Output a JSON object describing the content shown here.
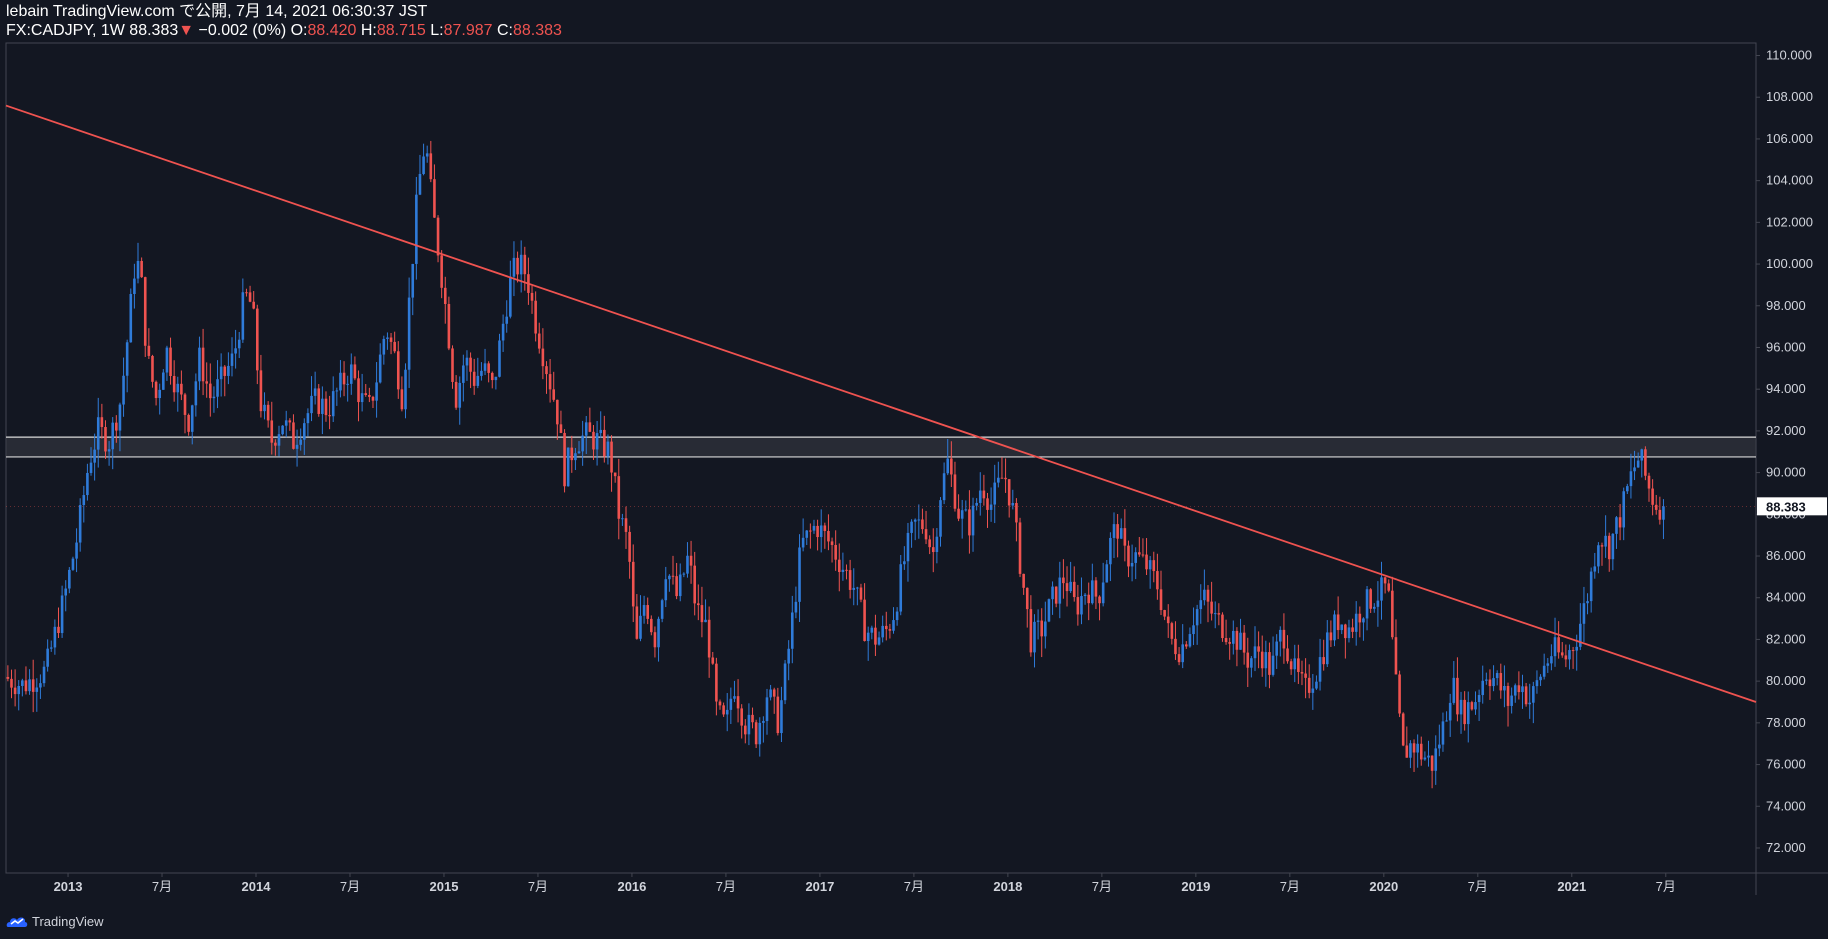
{
  "header": {
    "publish_line": "lebain TradingView.com で公開, 7月 14, 2021 06:30:37 JST",
    "symbol": "FX:CADJPY, 1W",
    "last": "88.383",
    "change_arrow": "▼",
    "change": "−0.002 (0%)",
    "o_label": "O:",
    "o_value": "88.420",
    "h_label": "H:",
    "h_value": "88.715",
    "l_label": "L:",
    "l_value": "87.987",
    "c_label": "C:",
    "c_value": "88.383"
  },
  "footer": {
    "brand": "TradingView"
  },
  "colors": {
    "background": "#131722",
    "up": "#2f7bd9",
    "down": "#ef5350",
    "trendline": "#ef5350",
    "zone_border": "#d9d9d9",
    "zone_fill": "#3a3d46",
    "axis_text": "#d1d4dc"
  },
  "chart_data": {
    "type": "candlestick",
    "symbol": "FX:CADJPY",
    "interval": "1W",
    "ylim": [
      70.8,
      110.6
    ],
    "yticks": [
      "110.000",
      "108.000",
      "106.000",
      "104.000",
      "102.000",
      "100.000",
      "98.000",
      "96.000",
      "94.000",
      "92.000",
      "90.000",
      "88.000",
      "86.000",
      "84.000",
      "82.000",
      "80.000",
      "78.000",
      "76.000",
      "74.000",
      "72.000"
    ],
    "xlim": [
      2012.67,
      2021.98
    ],
    "xticks": [
      {
        "x": 2013.0,
        "label": "2013"
      },
      {
        "x": 2013.5,
        "label": "7月"
      },
      {
        "x": 2014.0,
        "label": "2014"
      },
      {
        "x": 2014.5,
        "label": "7月"
      },
      {
        "x": 2015.0,
        "label": "2015"
      },
      {
        "x": 2015.5,
        "label": "7月"
      },
      {
        "x": 2016.0,
        "label": "2016"
      },
      {
        "x": 2016.5,
        "label": "7月"
      },
      {
        "x": 2017.0,
        "label": "2017"
      },
      {
        "x": 2017.5,
        "label": "7月"
      },
      {
        "x": 2018.0,
        "label": "2018"
      },
      {
        "x": 2018.5,
        "label": "7月"
      },
      {
        "x": 2019.0,
        "label": "2019"
      },
      {
        "x": 2019.5,
        "label": "7月"
      },
      {
        "x": 2020.0,
        "label": "2020"
      },
      {
        "x": 2020.5,
        "label": "7月"
      },
      {
        "x": 2021.0,
        "label": "2021"
      },
      {
        "x": 2021.5,
        "label": "7月"
      }
    ],
    "last_price_label": "88.383",
    "last_price": 88.383,
    "trendline": {
      "x1": 2012.67,
      "y1": 107.6,
      "x2": 2021.98,
      "y2": 79.0
    },
    "resistance_zone": {
      "top": 91.7,
      "bottom": 90.75
    },
    "price_path": [
      [
        2012.68,
        80.2
      ],
      [
        2012.78,
        79.8
      ],
      [
        2012.9,
        80.5
      ],
      [
        2013.0,
        84.0
      ],
      [
        2013.07,
        87.0
      ],
      [
        2013.13,
        90.5
      ],
      [
        2013.18,
        92.0
      ],
      [
        2013.24,
        91.5
      ],
      [
        2013.3,
        93.5
      ],
      [
        2013.34,
        96.8
      ],
      [
        2013.38,
        100.5
      ],
      [
        2013.41,
        99.0
      ],
      [
        2013.44,
        95.5
      ],
      [
        2013.49,
        93.5
      ],
      [
        2013.54,
        96.0
      ],
      [
        2013.6,
        94.0
      ],
      [
        2013.66,
        92.5
      ],
      [
        2013.72,
        95.5
      ],
      [
        2013.78,
        93.5
      ],
      [
        2013.84,
        94.5
      ],
      [
        2013.9,
        95.5
      ],
      [
        2013.96,
        98.5
      ],
      [
        2014.0,
        98.0
      ],
      [
        2014.04,
        93.5
      ],
      [
        2014.1,
        91.5
      ],
      [
        2014.16,
        92.5
      ],
      [
        2014.22,
        91.5
      ],
      [
        2014.27,
        92.5
      ],
      [
        2014.34,
        93.5
      ],
      [
        2014.4,
        93.0
      ],
      [
        2014.46,
        94.0
      ],
      [
        2014.52,
        95.0
      ],
      [
        2014.58,
        93.5
      ],
      [
        2014.62,
        93.0
      ],
      [
        2014.66,
        94.5
      ],
      [
        2014.71,
        97.0
      ],
      [
        2014.76,
        95.5
      ],
      [
        2014.8,
        93.5
      ],
      [
        2014.84,
        99.0
      ],
      [
        2014.88,
        103.5
      ],
      [
        2014.92,
        106.0
      ],
      [
        2014.96,
        102.5
      ],
      [
        2015.0,
        100.0
      ],
      [
        2015.04,
        97.0
      ],
      [
        2015.08,
        93.5
      ],
      [
        2015.13,
        95.5
      ],
      [
        2015.18,
        94.5
      ],
      [
        2015.23,
        95.0
      ],
      [
        2015.28,
        94.0
      ],
      [
        2015.34,
        97.5
      ],
      [
        2015.38,
        99.5
      ],
      [
        2015.42,
        100.0
      ],
      [
        2015.46,
        99.5
      ],
      [
        2015.5,
        97.5
      ],
      [
        2015.54,
        96.0
      ],
      [
        2015.58,
        94.5
      ],
      [
        2015.62,
        93.0
      ],
      [
        2015.66,
        90.0
      ],
      [
        2015.72,
        91.5
      ],
      [
        2015.78,
        91.8
      ],
      [
        2015.84,
        91.5
      ],
      [
        2015.9,
        91.0
      ],
      [
        2015.95,
        88.0
      ],
      [
        2016.0,
        86.5
      ],
      [
        2016.04,
        81.5
      ],
      [
        2016.09,
        84.0
      ],
      [
        2016.14,
        82.0
      ],
      [
        2016.2,
        85.5
      ],
      [
        2016.26,
        84.0
      ],
      [
        2016.32,
        86.0
      ],
      [
        2016.36,
        83.5
      ],
      [
        2016.42,
        82.5
      ],
      [
        2016.47,
        78.5
      ],
      [
        2016.52,
        77.8
      ],
      [
        2016.56,
        80.0
      ],
      [
        2016.62,
        78.0
      ],
      [
        2016.68,
        77.5
      ],
      [
        2016.74,
        79.5
      ],
      [
        2016.8,
        78.0
      ],
      [
        2016.86,
        82.0
      ],
      [
        2016.92,
        86.5
      ],
      [
        2017.0,
        87.5
      ],
      [
        2017.04,
        87.0
      ],
      [
        2017.08,
        86.5
      ],
      [
        2017.14,
        85.5
      ],
      [
        2017.2,
        84.5
      ],
      [
        2017.26,
        82.5
      ],
      [
        2017.32,
        82.0
      ],
      [
        2017.38,
        82.5
      ],
      [
        2017.42,
        83.5
      ],
      [
        2017.46,
        85.5
      ],
      [
        2017.52,
        87.5
      ],
      [
        2017.58,
        87.5
      ],
      [
        2017.62,
        86.0
      ],
      [
        2017.66,
        89.0
      ],
      [
        2017.7,
        90.5
      ],
      [
        2017.76,
        88.0
      ],
      [
        2017.82,
        87.5
      ],
      [
        2017.88,
        89.5
      ],
      [
        2017.93,
        88.5
      ],
      [
        2018.0,
        90.0
      ],
      [
        2018.04,
        88.5
      ],
      [
        2018.08,
        86.0
      ],
      [
        2018.14,
        82.0
      ],
      [
        2018.2,
        82.5
      ],
      [
        2018.26,
        84.0
      ],
      [
        2018.32,
        85.0
      ],
      [
        2018.38,
        83.5
      ],
      [
        2018.44,
        84.5
      ],
      [
        2018.5,
        84.0
      ],
      [
        2018.56,
        86.5
      ],
      [
        2018.6,
        87.5
      ],
      [
        2018.64,
        86.0
      ],
      [
        2018.7,
        86.0
      ],
      [
        2018.76,
        85.5
      ],
      [
        2018.82,
        84.5
      ],
      [
        2018.88,
        82.0
      ],
      [
        2018.94,
        81.5
      ],
      [
        2019.0,
        83.0
      ],
      [
        2019.06,
        84.0
      ],
      [
        2019.12,
        83.0
      ],
      [
        2019.18,
        82.5
      ],
      [
        2019.24,
        82.0
      ],
      [
        2019.3,
        81.0
      ],
      [
        2019.36,
        81.5
      ],
      [
        2019.42,
        80.5
      ],
      [
        2019.48,
        82.5
      ],
      [
        2019.54,
        80.5
      ],
      [
        2019.6,
        79.5
      ],
      [
        2019.66,
        80.5
      ],
      [
        2019.72,
        82.0
      ],
      [
        2019.78,
        83.0
      ],
      [
        2019.84,
        82.5
      ],
      [
        2019.9,
        83.5
      ],
      [
        2019.96,
        84.0
      ],
      [
        2020.04,
        84.5
      ],
      [
        2020.08,
        80.0
      ],
      [
        2020.12,
        76.5
      ],
      [
        2020.17,
        77.0
      ],
      [
        2020.22,
        76.5
      ],
      [
        2020.28,
        76.0
      ],
      [
        2020.34,
        78.0
      ],
      [
        2020.38,
        80.0
      ],
      [
        2020.43,
        78.5
      ],
      [
        2020.5,
        79.0
      ],
      [
        2020.56,
        80.5
      ],
      [
        2020.62,
        80.0
      ],
      [
        2020.68,
        79.0
      ],
      [
        2020.74,
        80.0
      ],
      [
        2020.8,
        79.0
      ],
      [
        2020.86,
        80.5
      ],
      [
        2020.92,
        81.5
      ],
      [
        2020.98,
        81.0
      ],
      [
        2021.04,
        82.0
      ],
      [
        2021.1,
        84.0
      ],
      [
        2021.16,
        87.0
      ],
      [
        2021.22,
        86.5
      ],
      [
        2021.28,
        88.0
      ],
      [
        2021.34,
        90.0
      ],
      [
        2021.38,
        90.8
      ],
      [
        2021.42,
        89.5
      ],
      [
        2021.46,
        88.5
      ],
      [
        2021.5,
        88.4
      ]
    ]
  }
}
